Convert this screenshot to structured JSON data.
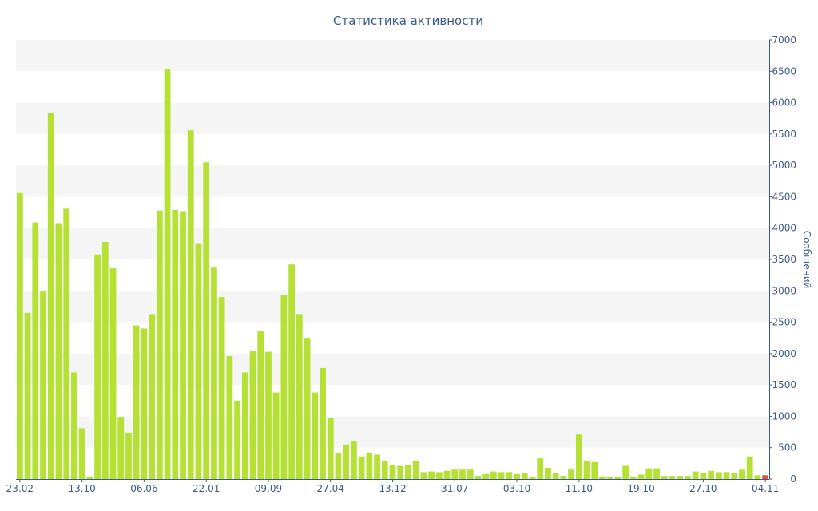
{
  "chart_data": {
    "type": "bar",
    "title": "Статистика активности",
    "xlabel": "",
    "ylabel": "Сообщений",
    "ylim": [
      0,
      7000
    ],
    "yticks": [
      0,
      500,
      1000,
      1500,
      2000,
      2500,
      3000,
      3500,
      4000,
      4500,
      5000,
      5500,
      6000,
      6500,
      7000
    ],
    "y_axis_side": "right",
    "grid": "alternating horizontal bands",
    "xtick_labels": [
      {
        "label": "23.02",
        "index": 0
      },
      {
        "label": "13.10",
        "index": 8
      },
      {
        "label": "06.06",
        "index": 16
      },
      {
        "label": "22.01",
        "index": 24
      },
      {
        "label": "09.09",
        "index": 32
      },
      {
        "label": "27.04",
        "index": 40
      },
      {
        "label": "13.12",
        "index": 48
      },
      {
        "label": "31.07",
        "index": 56
      },
      {
        "label": "03.10",
        "index": 64
      },
      {
        "label": "11.10",
        "index": 72
      },
      {
        "label": "19.10",
        "index": 80
      },
      {
        "label": "27.10",
        "index": 88
      },
      {
        "label": "04.11",
        "index": 96
      }
    ],
    "colors": {
      "bar": "#b5e134",
      "highlight": "#e0533a",
      "text": "#3a5a8c",
      "band": "#f5f5f5",
      "axis": "#3a5a8c"
    },
    "series": [
      {
        "values": [
          4560,
          2650,
          4090,
          2990,
          5830,
          4080,
          4310,
          1700,
          810,
          40,
          3580,
          3780,
          3360,
          990,
          740,
          2450,
          2400,
          2630,
          4280,
          6530,
          4290,
          4270,
          5560,
          3760,
          5050,
          3370,
          2900,
          1960,
          1250,
          1700,
          2040,
          2360,
          2030,
          1380,
          2930,
          3420,
          2630,
          2250,
          1380,
          1770,
          970,
          420,
          550,
          610,
          360,
          420,
          390,
          290,
          230,
          210,
          220,
          290,
          110,
          120,
          110,
          130,
          150,
          150,
          150,
          50,
          80,
          120,
          110,
          110,
          80,
          90,
          30,
          330,
          180,
          90,
          50,
          150,
          710,
          290,
          270,
          40,
          40,
          40,
          210,
          40,
          70,
          170,
          170,
          50,
          50,
          50,
          50,
          120,
          100,
          130,
          110,
          110,
          90,
          150,
          360,
          60,
          60
        ]
      }
    ],
    "highlight_index": 96
  }
}
